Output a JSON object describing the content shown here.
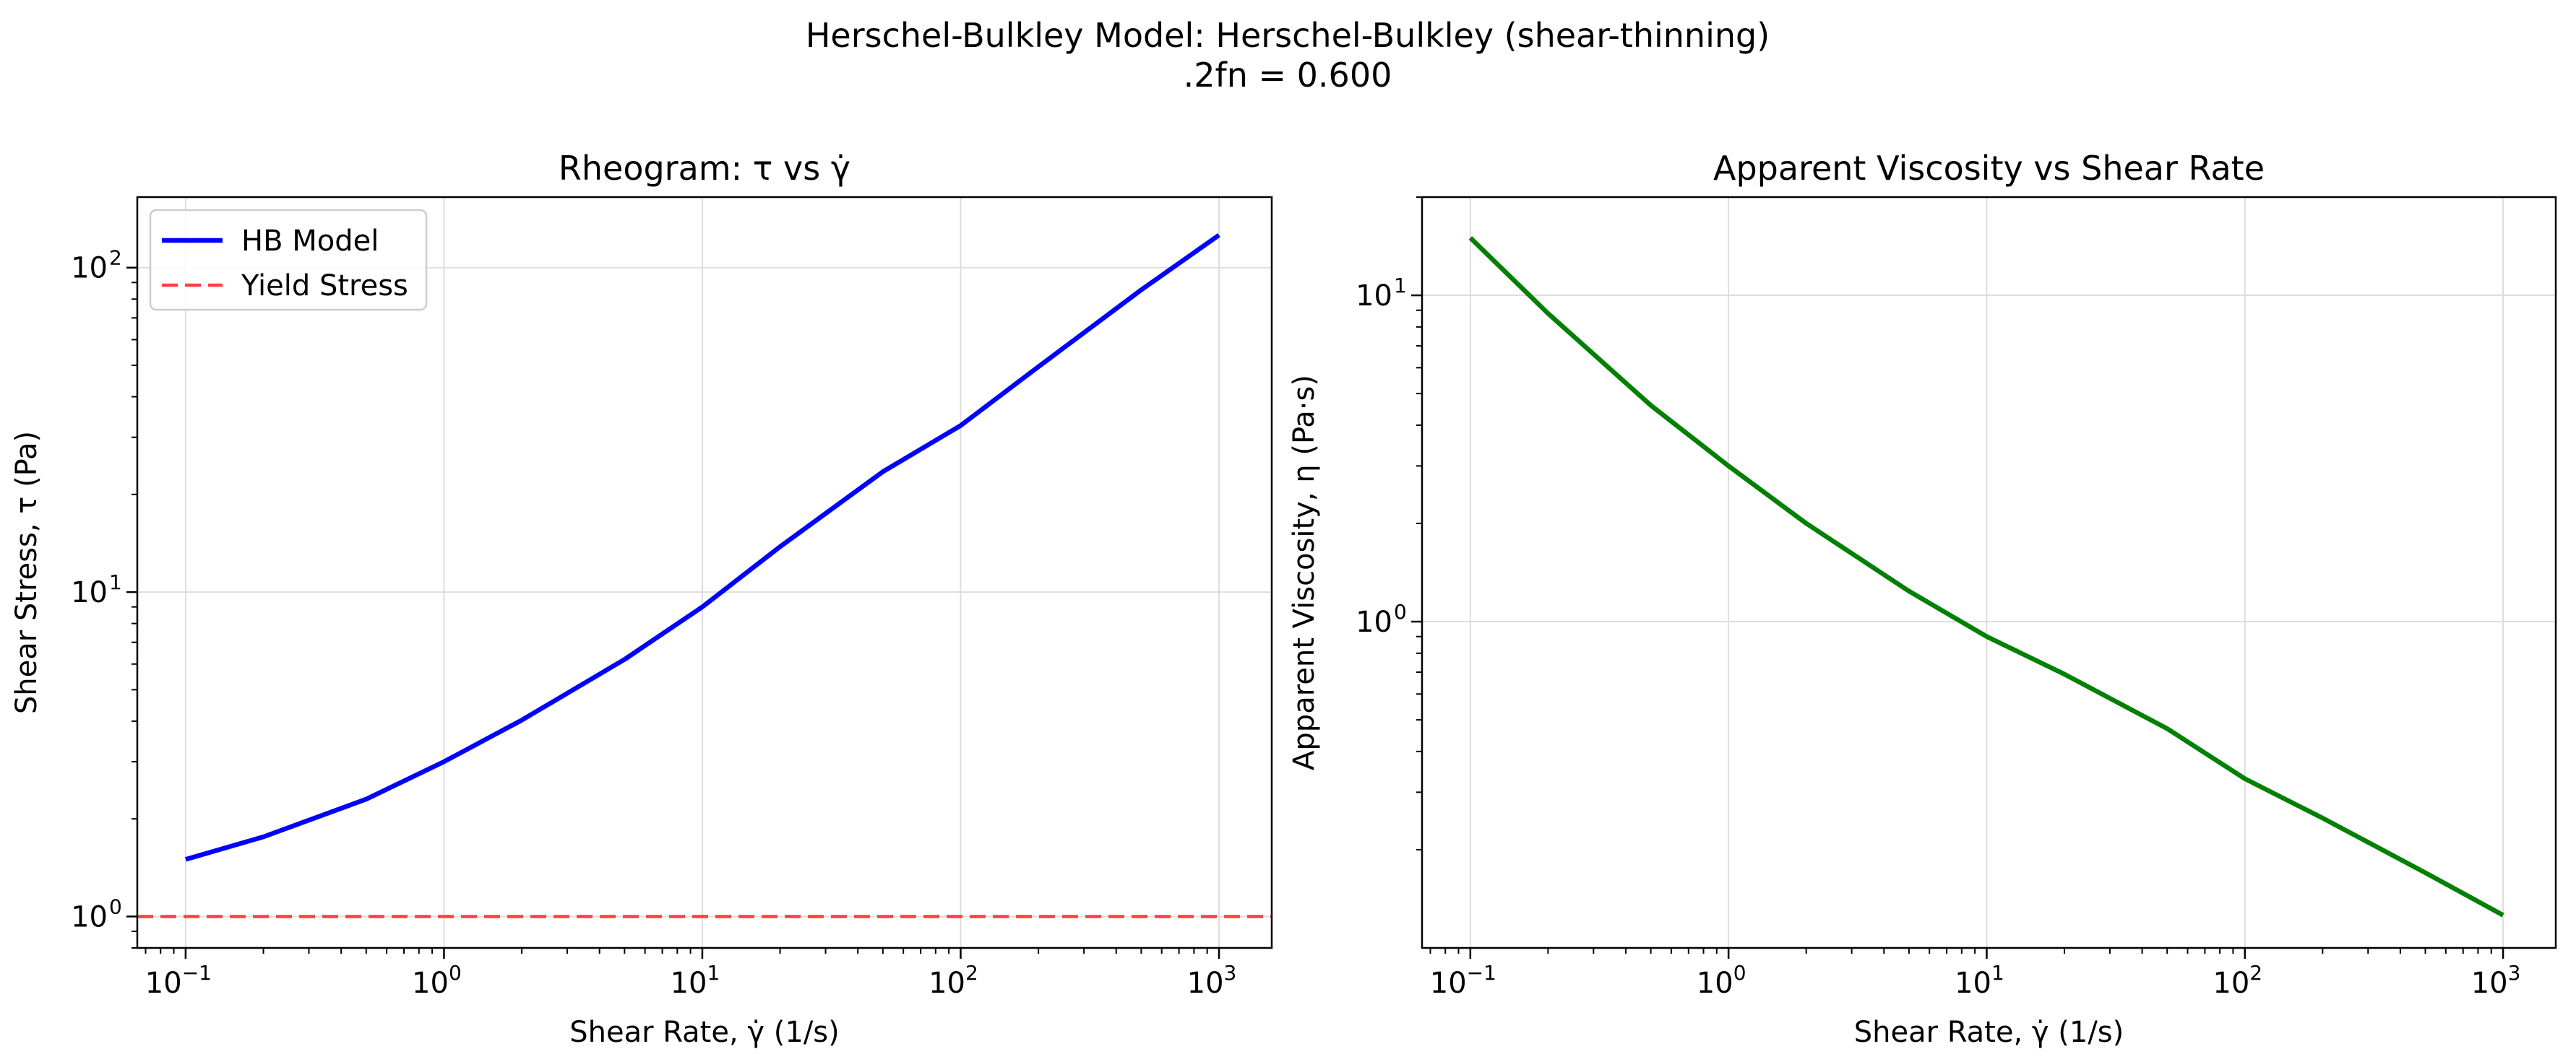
{
  "figure": {
    "suptitle_line1": "Herschel-Bulkley Model: Herschel-Bulkley (shear-thinning)",
    "suptitle_line2": ".2fn = 0.600"
  },
  "chart_data": [
    {
      "type": "line",
      "title": "Rheogram: τ vs γ̇",
      "xlabel": "Shear Rate, γ̇ (1/s)",
      "ylabel": "Shear Stress, τ (Pa)",
      "xscale": "log",
      "yscale": "log",
      "xlim": [
        0.065,
        1600
      ],
      "ylim": [
        0.8,
        165
      ],
      "xticks": [
        {
          "base": "10",
          "exp": "−1",
          "value": 0.1
        },
        {
          "base": "10",
          "exp": "0",
          "value": 1
        },
        {
          "base": "10",
          "exp": "1",
          "value": 10
        },
        {
          "base": "10",
          "exp": "2",
          "value": 100
        },
        {
          "base": "10",
          "exp": "3",
          "value": 1000
        }
      ],
      "yticks": [
        {
          "base": "10",
          "exp": "0",
          "value": 1
        },
        {
          "base": "10",
          "exp": "1",
          "value": 10
        },
        {
          "base": "10",
          "exp": "2",
          "value": 100
        }
      ],
      "grid": true,
      "legend_position": "top-left",
      "series": [
        {
          "name": "HB Model",
          "color": "#0000ff",
          "style": "solid",
          "x": [
            0.1,
            0.2,
            0.5,
            1,
            2,
            5,
            10,
            20,
            50,
            100,
            200,
            500,
            1000
          ],
          "y": [
            1.5,
            1.76,
            2.3,
            3.0,
            4.03,
            6.2,
            9.0,
            13.8,
            23.5,
            32.6,
            49.5,
            85.4,
            126
          ]
        },
        {
          "name": "Yield Stress",
          "color": "#ff4040",
          "style": "dashed",
          "x": [
            0.065,
            1600
          ],
          "y": [
            1.0,
            1.0
          ]
        }
      ]
    },
    {
      "type": "line",
      "title": "Apparent Viscosity vs Shear Rate",
      "xlabel": "Shear Rate, γ̇ (1/s)",
      "ylabel": "Apparent Viscosity, η (Pa·s)",
      "xscale": "log",
      "yscale": "log",
      "xlim": [
        0.065,
        1600
      ],
      "ylim": [
        0.1,
        20
      ],
      "xticks": [
        {
          "base": "10",
          "exp": "−1",
          "value": 0.1
        },
        {
          "base": "10",
          "exp": "0",
          "value": 1
        },
        {
          "base": "10",
          "exp": "1",
          "value": 10
        },
        {
          "base": "10",
          "exp": "2",
          "value": 100
        },
        {
          "base": "10",
          "exp": "3",
          "value": 1000
        }
      ],
      "yticks": [
        {
          "base": "10",
          "exp": "0",
          "value": 1
        },
        {
          "base": "10",
          "exp": "1",
          "value": 10
        }
      ],
      "grid": true,
      "series": [
        {
          "color": "#008000",
          "style": "solid",
          "x": [
            0.1,
            0.2,
            0.5,
            1,
            2,
            5,
            10,
            20,
            50,
            100,
            200,
            500,
            1000
          ],
          "y": [
            15,
            8.8,
            4.6,
            3.0,
            2.0,
            1.24,
            0.9,
            0.69,
            0.47,
            0.33,
            0.25,
            0.17,
            0.126
          ]
        }
      ]
    }
  ]
}
